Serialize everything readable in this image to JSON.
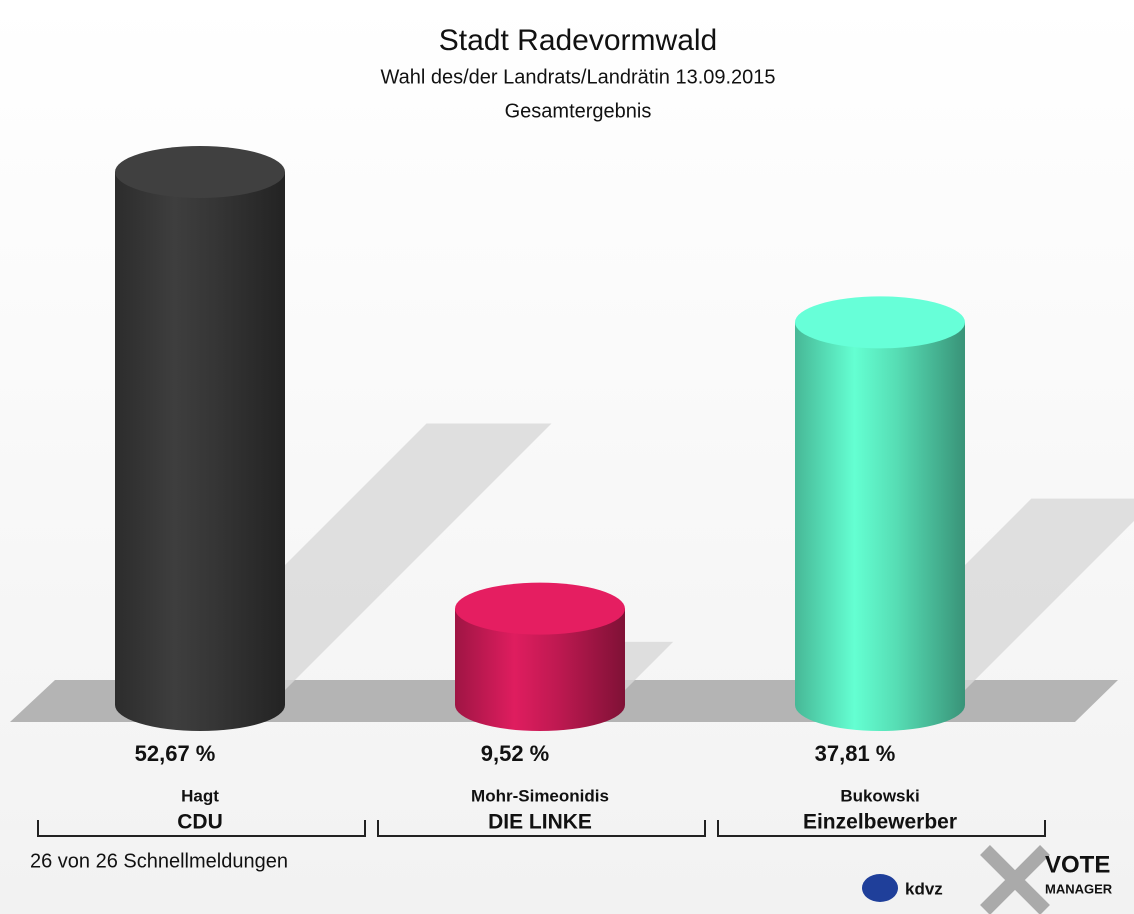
{
  "chart_data": {
    "type": "cylinder_bar",
    "title": "Stadt Radevormwald",
    "subtitle": "Wahl des/der Landrats/Landrätin 13.09.2015",
    "subtitle2": "Gesamtergebnis",
    "categories": [
      "Hagt",
      "Mohr-Simeonidis",
      "Bukowski"
    ],
    "groups": [
      "CDU",
      "DIE LINKE",
      "Einzelbewerber"
    ],
    "values": [
      52.67,
      9.52,
      37.81
    ],
    "value_labels": [
      "52,67 %",
      "9,52 %",
      "37,81 %"
    ],
    "colors": [
      "#3b3b3b",
      "#d41c5a",
      "#5ff5c8"
    ],
    "footer": "26 von 26 Schnellmeldungen",
    "logos": [
      "kdvz",
      "VOTE",
      "MANAGER"
    ]
  }
}
